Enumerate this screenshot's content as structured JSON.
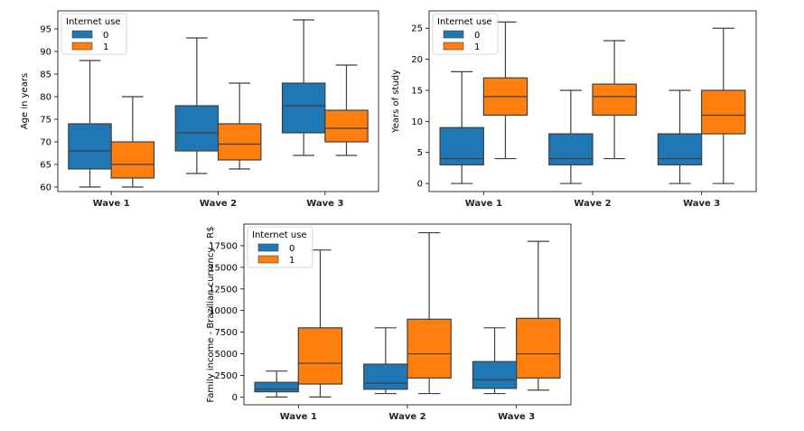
{
  "colors": {
    "group_0": "#1f77b4",
    "group_1": "#ff7f0e",
    "whisker": "#3f3f3f",
    "frame": "#000000"
  },
  "chart_data": [
    {
      "type": "box",
      "ylabel": "Age in years",
      "categories": [
        "Wave 1",
        "Wave 2",
        "Wave 3"
      ],
      "ylim": [
        59,
        99
      ],
      "yticks": [
        "60",
        "65",
        "70",
        "75",
        "80",
        "85",
        "90",
        "95"
      ],
      "legend": {
        "title": "Internet use",
        "entries": [
          "0",
          "1"
        ],
        "placement": "top-left"
      },
      "series": [
        {
          "name": "0",
          "boxes": [
            {
              "min": 60,
              "q1": 64,
              "median": 68,
              "q3": 74,
              "max": 88
            },
            {
              "min": 63,
              "q1": 68,
              "median": 72,
              "q3": 78,
              "max": 93
            },
            {
              "min": 67,
              "q1": 72,
              "median": 78,
              "q3": 83,
              "max": 97
            }
          ]
        },
        {
          "name": "1",
          "boxes": [
            {
              "min": 60,
              "q1": 62,
              "median": 65,
              "q3": 70,
              "max": 80
            },
            {
              "min": 64,
              "q1": 66,
              "median": 69.5,
              "q3": 74,
              "max": 83
            },
            {
              "min": 67,
              "q1": 70,
              "median": 73,
              "q3": 77,
              "max": 87
            }
          ]
        }
      ]
    },
    {
      "type": "box",
      "ylabel": "Years of study",
      "categories": [
        "Wave 1",
        "Wave 2",
        "Wave 3"
      ],
      "ylim": [
        -1.3,
        27.8
      ],
      "yticks": [
        "0",
        "5",
        "10",
        "15",
        "20",
        "25"
      ],
      "legend": {
        "title": "Internet use",
        "entries": [
          "0",
          "1"
        ],
        "placement": "top-left"
      },
      "series": [
        {
          "name": "0",
          "boxes": [
            {
              "min": 0,
              "q1": 3,
              "median": 4,
              "q3": 9,
              "max": 18
            },
            {
              "min": 0,
              "q1": 3,
              "median": 4,
              "q3": 8,
              "max": 15
            },
            {
              "min": 0,
              "q1": 3,
              "median": 4,
              "q3": 8,
              "max": 15
            }
          ]
        },
        {
          "name": "1",
          "boxes": [
            {
              "min": 4,
              "q1": 11,
              "median": 14,
              "q3": 17,
              "max": 26
            },
            {
              "min": 4,
              "q1": 11,
              "median": 14,
              "q3": 16,
              "max": 23
            },
            {
              "min": 0,
              "q1": 8,
              "median": 11,
              "q3": 15,
              "max": 25
            }
          ]
        }
      ]
    },
    {
      "type": "box",
      "ylabel": "Family income - Brazilian currency - R$",
      "categories": [
        "Wave 1",
        "Wave 2",
        "Wave 3"
      ],
      "ylim": [
        -900,
        20000
      ],
      "yticks": [
        "0",
        "2500",
        "5000",
        "7500",
        "10000",
        "12500",
        "15000",
        "17500"
      ],
      "legend": {
        "title": "Internet use",
        "entries": [
          "0",
          "1"
        ],
        "placement": "top-left"
      },
      "series": [
        {
          "name": "0",
          "boxes": [
            {
              "min": 0,
              "q1": 600,
              "median": 900,
              "q3": 1700,
              "max": 3000
            },
            {
              "min": 400,
              "q1": 900,
              "median": 1600,
              "q3": 3800,
              "max": 8000
            },
            {
              "min": 400,
              "q1": 1000,
              "median": 2000,
              "q3": 4100,
              "max": 8000
            }
          ]
        },
        {
          "name": "1",
          "boxes": [
            {
              "min": 0,
              "q1": 1500,
              "median": 3900,
              "q3": 8000,
              "max": 17000
            },
            {
              "min": 400,
              "q1": 2200,
              "median": 5000,
              "q3": 9000,
              "max": 19000
            },
            {
              "min": 800,
              "q1": 2200,
              "median": 5000,
              "q3": 9100,
              "max": 18000
            }
          ]
        }
      ]
    }
  ]
}
